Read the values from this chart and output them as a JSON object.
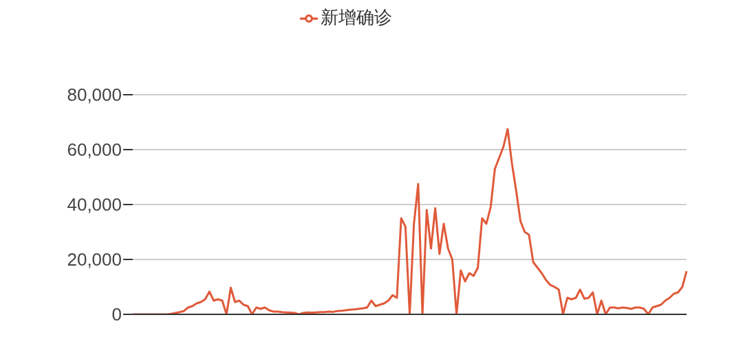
{
  "chart_data": {
    "type": "line",
    "categories": [
      null,
      null,
      null,
      null,
      null,
      null,
      null,
      null,
      null,
      null,
      null,
      null,
      null,
      null,
      null,
      null,
      null,
      null,
      null,
      null,
      null,
      null,
      null,
      null,
      null,
      null,
      null,
      null,
      null,
      null,
      null,
      null,
      null,
      null,
      null,
      null,
      null,
      null,
      null,
      null,
      null,
      null,
      null,
      null,
      null,
      null,
      null,
      null,
      null,
      null,
      null,
      null,
      null,
      null,
      null,
      null,
      null,
      null,
      null,
      null,
      null,
      null,
      null,
      null,
      null,
      null,
      null,
      null,
      null,
      null,
      null,
      null,
      null,
      null,
      null,
      null,
      null,
      null,
      null,
      null,
      null,
      null,
      null,
      null,
      null,
      null,
      null,
      null,
      null,
      null,
      null,
      null,
      null,
      null,
      null,
      null,
      null,
      null,
      null,
      null,
      null,
      null,
      null,
      null,
      null,
      null,
      null,
      null,
      null,
      null,
      null,
      null,
      null,
      null,
      null,
      null,
      null,
      null,
      null,
      null,
      null,
      null,
      null,
      null,
      null,
      null,
      null,
      null,
      null,
      null,
      null
    ],
    "series": [
      {
        "name": "新增确诊",
        "color": "#e05a3a",
        "values": [
          0,
          0,
          0,
          0,
          0,
          0,
          0,
          0,
          0,
          200,
          500,
          800,
          1200,
          2500,
          3000,
          4000,
          4500,
          5500,
          8300,
          5000,
          5500,
          5000,
          0,
          9700,
          4500,
          5000,
          3500,
          3000,
          0,
          2500,
          2000,
          2500,
          1500,
          1000,
          1000,
          800,
          700,
          600,
          500,
          0,
          500,
          700,
          600,
          700,
          800,
          800,
          1000,
          900,
          1200,
          1300,
          1500,
          1700,
          1800,
          2000,
          2200,
          2500,
          5000,
          3000,
          3500,
          4000,
          5000,
          7000,
          6000,
          35000,
          32000,
          0,
          33000,
          47500,
          0,
          38000,
          24000,
          38700,
          22000,
          33000,
          24000,
          20000,
          0,
          16000,
          12000,
          15000,
          14000,
          17000,
          35000,
          33000,
          39000,
          53000,
          57000,
          61000,
          67500,
          55000,
          45000,
          34000,
          30000,
          29000,
          19000,
          17000,
          15000,
          12500,
          10700,
          10000,
          9000,
          0,
          6000,
          5500,
          6000,
          9000,
          5700,
          6000,
          8000,
          0,
          5000,
          0,
          2500,
          2500,
          2200,
          2500,
          2300,
          2000,
          2500,
          2500,
          2000,
          0,
          2500,
          3000,
          3500,
          5000,
          6000,
          7500,
          8000,
          10000,
          15700
        ]
      }
    ],
    "ylim": [
      0,
      80000
    ],
    "yticks": [
      0,
      {
        "value": 20000,
        "label": "20,000"
      },
      {
        "value": 40000,
        "label": "40,000"
      },
      {
        "value": 60000,
        "label": "60,000"
      },
      {
        "value": 80000,
        "label": "80,000"
      }
    ],
    "grid": "y",
    "legend": "top",
    "line_style": "solid"
  }
}
